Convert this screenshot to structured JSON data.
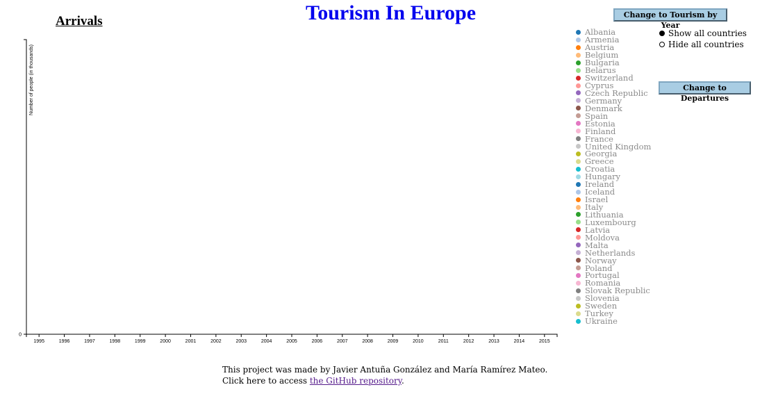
{
  "header": {
    "title": "Tourism In Europe"
  },
  "chart": {
    "subtitle": "Arrivals",
    "ylabel": "Number of people (in thousands)"
  },
  "chart_data": {
    "type": "line",
    "title": "Arrivals",
    "xlabel": "",
    "ylabel": "Number of people (in thousands)",
    "x": [
      1995,
      1996,
      1997,
      1998,
      1999,
      2000,
      2001,
      2002,
      2003,
      2004,
      2005,
      2006,
      2007,
      2008,
      2009,
      2010,
      2011,
      2012,
      2013,
      2014,
      2015
    ],
    "y_ticks": [
      "0"
    ],
    "series": [],
    "grid": false,
    "legend": "right"
  },
  "buttons": {
    "year": "Change to Tourism by Year",
    "departures": "Change to Departures"
  },
  "legend": [
    {
      "name": "Albania",
      "color": "#1f77b4"
    },
    {
      "name": "Armenia",
      "color": "#aec7e8"
    },
    {
      "name": "Austria",
      "color": "#ff7f0e"
    },
    {
      "name": "Belgium",
      "color": "#ffbb78"
    },
    {
      "name": "Bulgaria",
      "color": "#2ca02c"
    },
    {
      "name": "Belarus",
      "color": "#98df8a"
    },
    {
      "name": "Switzerland",
      "color": "#d62728"
    },
    {
      "name": "Cyprus",
      "color": "#ff9896"
    },
    {
      "name": "Czech Republic",
      "color": "#9467bd"
    },
    {
      "name": "Germany",
      "color": "#c5b0d5"
    },
    {
      "name": "Denmark",
      "color": "#8c564b"
    },
    {
      "name": "Spain",
      "color": "#c49c94"
    },
    {
      "name": "Estonia",
      "color": "#e377c2"
    },
    {
      "name": "Finland",
      "color": "#f7b6d2"
    },
    {
      "name": "France",
      "color": "#7f7f7f"
    },
    {
      "name": "United Kingdom",
      "color": "#c7c7c7"
    },
    {
      "name": "Georgia",
      "color": "#bcbd22"
    },
    {
      "name": "Greece",
      "color": "#dbdb8d"
    },
    {
      "name": "Croatia",
      "color": "#17becf"
    },
    {
      "name": "Hungary",
      "color": "#9edae5"
    },
    {
      "name": "Ireland",
      "color": "#1f77b4"
    },
    {
      "name": "Iceland",
      "color": "#aec7e8"
    },
    {
      "name": "Israel",
      "color": "#ff7f0e"
    },
    {
      "name": "Italy",
      "color": "#ffbb78"
    },
    {
      "name": "Lithuania",
      "color": "#2ca02c"
    },
    {
      "name": "Luxembourg",
      "color": "#98df8a"
    },
    {
      "name": "Latvia",
      "color": "#d62728"
    },
    {
      "name": "Moldova",
      "color": "#ff9896"
    },
    {
      "name": "Malta",
      "color": "#9467bd"
    },
    {
      "name": "Netherlands",
      "color": "#c5b0d5"
    },
    {
      "name": "Norway",
      "color": "#8c564b"
    },
    {
      "name": "Poland",
      "color": "#c49c94"
    },
    {
      "name": "Portugal",
      "color": "#e377c2"
    },
    {
      "name": "Romania",
      "color": "#f7b6d2"
    },
    {
      "name": "Slovak Republic",
      "color": "#7f7f7f"
    },
    {
      "name": "Slovenia",
      "color": "#c7c7c7"
    },
    {
      "name": "Sweden",
      "color": "#bcbd22"
    },
    {
      "name": "Turkey",
      "color": "#dbdb8d"
    },
    {
      "name": "Ukraine",
      "color": "#17becf"
    }
  ],
  "radios": {
    "show": "Show all countries",
    "hide": "Hide all countries",
    "selected": "show"
  },
  "footer": {
    "line1": "This project was made by Javier Antuña González and María Ramírez Mateo.",
    "line2_prefix": "Click here to access ",
    "link": "the GitHub repository",
    "line2_suffix": "."
  }
}
